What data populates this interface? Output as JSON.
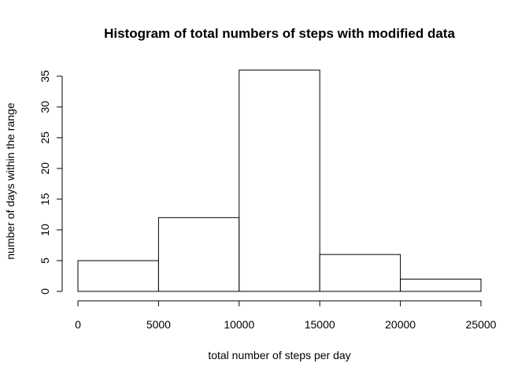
{
  "chart_data": {
    "type": "bar",
    "title": "Histogram of total numbers of steps with modified data",
    "xlabel": "total number of steps per day",
    "ylabel": "number of days within the range",
    "bins": [
      {
        "from": 0,
        "to": 5000,
        "count": 5
      },
      {
        "from": 5000,
        "to": 10000,
        "count": 12
      },
      {
        "from": 10000,
        "to": 15000,
        "count": 36
      },
      {
        "from": 15000,
        "to": 20000,
        "count": 6
      },
      {
        "from": 20000,
        "to": 25000,
        "count": 2
      }
    ],
    "xlim": [
      0,
      25000
    ],
    "ylim": [
      0,
      36
    ],
    "xticks": [
      "0",
      "5000",
      "10000",
      "15000",
      "20000",
      "25000"
    ],
    "yticks": [
      "0",
      "5",
      "10",
      "15",
      "20",
      "25",
      "30",
      "35"
    ],
    "grid": false,
    "bar_fill": "#ffffff",
    "bar_stroke": "#000000"
  }
}
